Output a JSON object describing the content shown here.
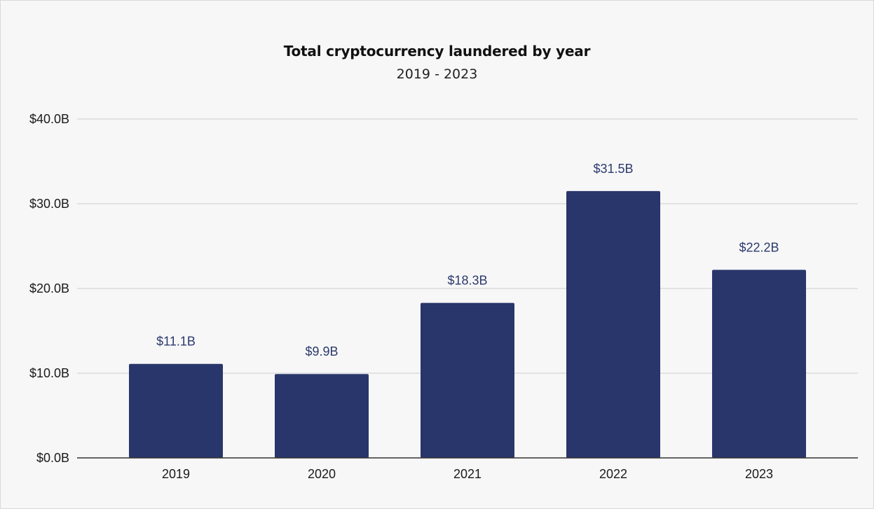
{
  "chart_data": {
    "type": "bar",
    "title": "Total cryptocurrency laundered by year",
    "subtitle": "2019 - 2023",
    "categories": [
      "2019",
      "2020",
      "2021",
      "2022",
      "2023"
    ],
    "values": [
      11.1,
      9.9,
      18.3,
      31.5,
      22.2
    ],
    "data_labels": [
      "$11.1B",
      "$9.9B",
      "$18.3B",
      "$31.5B",
      "$22.2B"
    ],
    "y_ticks": [
      0,
      10,
      20,
      30,
      40
    ],
    "y_tick_labels": [
      "$0.0B",
      "$10.0B",
      "$20.0B",
      "$30.0B",
      "$40.0B"
    ],
    "ylim": [
      0,
      40
    ],
    "xlabel": "",
    "ylabel": "",
    "grid": true,
    "legend": "none",
    "bar_color": "#29366b",
    "label_color": "#2b3a6e",
    "grid_color": "#cccccc",
    "axis_color": "#333333"
  }
}
